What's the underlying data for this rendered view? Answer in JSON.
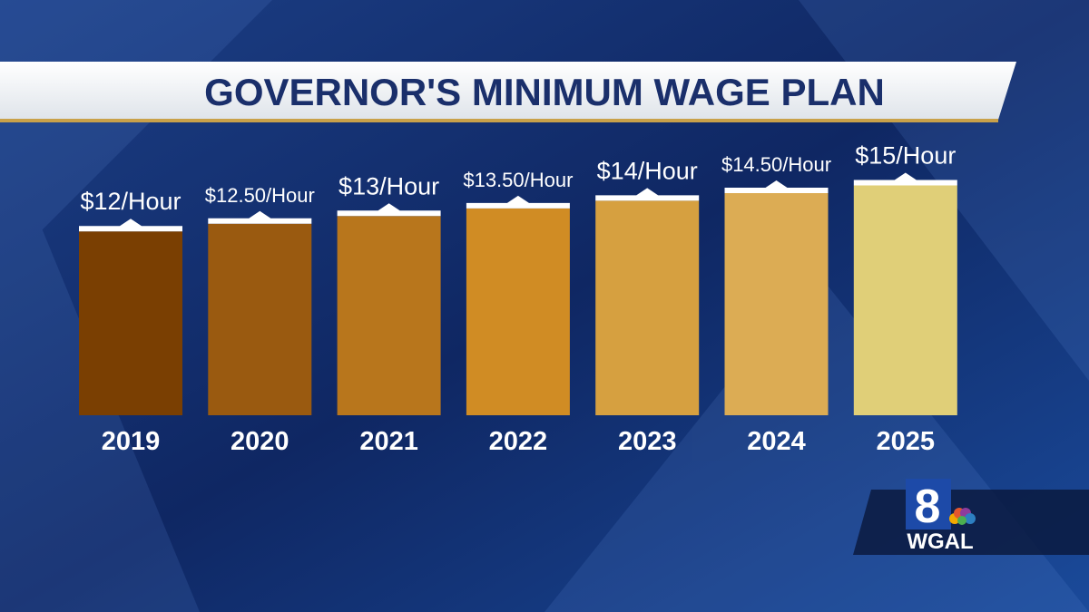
{
  "chart_data": {
    "type": "bar",
    "title": "GOVERNOR'S MINIMUM WAGE PLAN",
    "categories": [
      "2019",
      "2020",
      "2021",
      "2022",
      "2023",
      "2024",
      "2025"
    ],
    "values": [
      12,
      12.5,
      13,
      13.5,
      14,
      14.5,
      15
    ],
    "value_labels": [
      "$12/Hour",
      "$12.50/Hour",
      "$13/Hour",
      "$13.50/Hour",
      "$14/Hour",
      "$14.50/Hour",
      "$15/Hour"
    ],
    "colors": [
      "#7a3f02",
      "#9a5a10",
      "#b8761c",
      "#d08c24",
      "#d6a040",
      "#dcac54",
      "#e0cf78"
    ]
  },
  "logo": {
    "channel": "8",
    "call_sign": "WGAL"
  }
}
